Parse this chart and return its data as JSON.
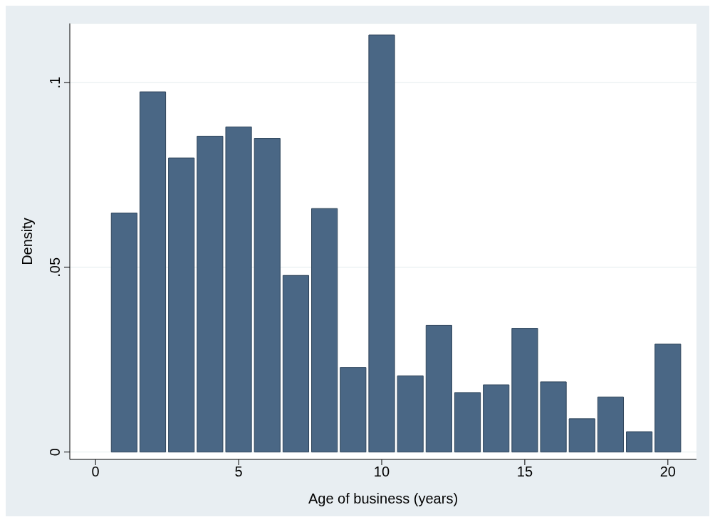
{
  "chart_data": {
    "type": "histogram",
    "xlabel": "Age of business (years)",
    "ylabel": "Density",
    "bins": [
      0.5,
      1.5,
      2.5,
      3.5,
      4.5,
      5.5,
      6.5,
      7.5,
      8.5,
      9.5,
      10.5,
      11.5,
      12.5,
      13.5,
      14.5,
      15.5,
      16.5,
      17.5,
      18.5,
      19.5,
      20.5
    ],
    "values": [
      0.0647,
      0.0975,
      0.0796,
      0.0855,
      0.088,
      0.0849,
      0.0478,
      0.0659,
      0.0229,
      0.1129,
      0.0206,
      0.0343,
      0.0161,
      0.0182,
      0.0335,
      0.019,
      0.009,
      0.0149,
      0.0055,
      0.0292
    ],
    "color": "#4a6785",
    "xlim": [
      -0.9,
      21
    ],
    "xticks": [
      0,
      5,
      10,
      15,
      20
    ],
    "ylim": [
      -0.002,
      0.116
    ],
    "yticks": [
      {
        "value": 0,
        "label": "0"
      },
      {
        "value": 0.05,
        "label": ".05"
      },
      {
        "value": 0.1,
        "label": ".1"
      }
    ],
    "grid": "y"
  }
}
